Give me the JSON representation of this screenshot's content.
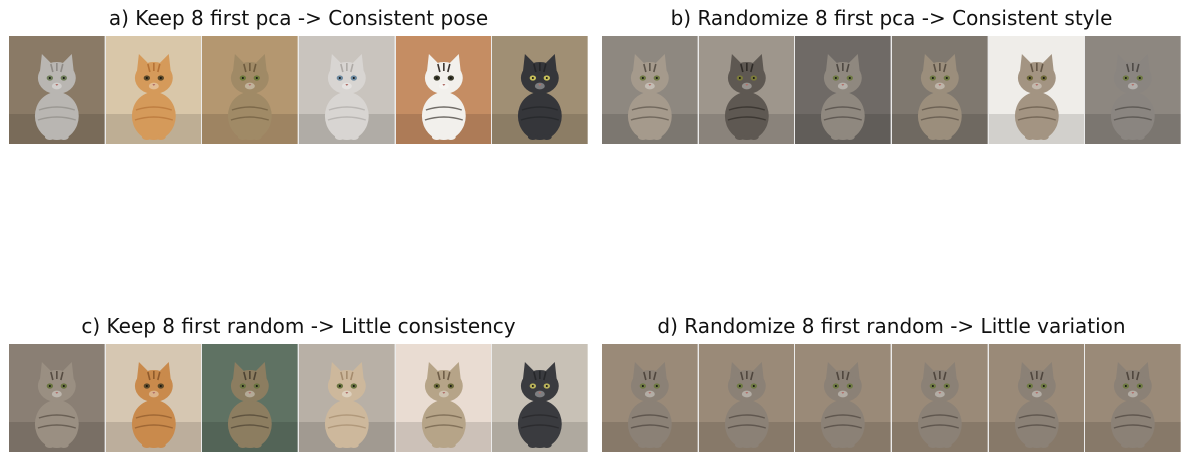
{
  "panels": [
    {
      "id": "a",
      "title": "a) Keep 8 first pca -> Consistent pose",
      "tiles": [
        {
          "bg": "#8a7a66",
          "fur": "#b9b6b2",
          "stripe": "#8f8b86",
          "eye": "#6f7d5a"
        },
        {
          "bg": "#d9c7a9",
          "fur": "#d59a5a",
          "stripe": "#b57236",
          "eye": "#5c4a2a"
        },
        {
          "bg": "#b49770",
          "fur": "#a08a66",
          "stripe": "#6e5b3e",
          "eye": "#6d7a3c"
        },
        {
          "bg": "#c9c4be",
          "fur": "#d8d5d2",
          "stripe": "#aeaaa6",
          "eye": "#6d8aa0"
        },
        {
          "bg": "#c58d63",
          "fur": "#f2f0ec",
          "stripe": "#3b3430",
          "eye": "#3a3a2a"
        },
        {
          "bg": "#a08f74",
          "fur": "#35363a",
          "stripe": "#242528",
          "eye": "#c7c05a"
        }
      ]
    },
    {
      "id": "b",
      "title": "b) Randomize 8 first pca -> Consistent style",
      "tiles": [
        {
          "bg": "#8e8880",
          "fur": "#a59a8c",
          "stripe": "#5c544a",
          "eye": "#6f7a44"
        },
        {
          "bg": "#9e968c",
          "fur": "#5e5852",
          "stripe": "#2f2b27",
          "eye": "#7a7a3a"
        },
        {
          "bg": "#6f6a66",
          "fur": "#8f887f",
          "stripe": "#4d4741",
          "eye": "#6f7a44"
        },
        {
          "bg": "#7f786f",
          "fur": "#9b8e7c",
          "stripe": "#5a5044",
          "eye": "#6f7a44"
        },
        {
          "bg": "#efede9",
          "fur": "#a39482",
          "stripe": "#635646",
          "eye": "#6f6a3a"
        },
        {
          "bg": "#8d8780",
          "fur": "#8a8580",
          "stripe": "#4e4a46",
          "eye": "#6f7a44"
        }
      ]
    },
    {
      "id": "c",
      "title": "c) Keep 8 first random -> Little consistency",
      "tiles": [
        {
          "bg": "#8a7f74",
          "fur": "#9a8f82",
          "stripe": "#564c42",
          "eye": "#6a7440"
        },
        {
          "bg": "#d6c7b2",
          "fur": "#c98a4c",
          "stripe": "#8f5a2c",
          "eye": "#5c4a2a"
        },
        {
          "bg": "#5f7263",
          "fur": "#8c7d60",
          "stripe": "#4d4333",
          "eye": "#6a7440"
        },
        {
          "bg": "#b8b0a6",
          "fur": "#cdb89c",
          "stripe": "#a58c6e",
          "eye": "#6a7440"
        },
        {
          "bg": "#e9dcd2",
          "fur": "#b6a488",
          "stripe": "#6f5e48",
          "eye": "#6a6a3a"
        },
        {
          "bg": "#c8c1b6",
          "fur": "#3a3b3f",
          "stripe": "#26272a",
          "eye": "#b9b25a"
        }
      ]
    },
    {
      "id": "d",
      "title": "d) Randomize 8 first random -> Little variation",
      "tiles": [
        {
          "bg": "#9a8a78",
          "fur": "#8b8176",
          "stripe": "#4f463e",
          "eye": "#6f7a44"
        },
        {
          "bg": "#9a8a78",
          "fur": "#8b8176",
          "stripe": "#4f463e",
          "eye": "#6f7a44"
        },
        {
          "bg": "#9a8a78",
          "fur": "#8b8176",
          "stripe": "#4f463e",
          "eye": "#6f7a44"
        },
        {
          "bg": "#9a8a78",
          "fur": "#8b8176",
          "stripe": "#4f463e",
          "eye": "#6f7a44"
        },
        {
          "bg": "#9a8a78",
          "fur": "#8b8176",
          "stripe": "#4f463e",
          "eye": "#6f7a44"
        },
        {
          "bg": "#9a8a78",
          "fur": "#8b8176",
          "stripe": "#4f463e",
          "eye": "#6f7a44"
        }
      ]
    }
  ]
}
